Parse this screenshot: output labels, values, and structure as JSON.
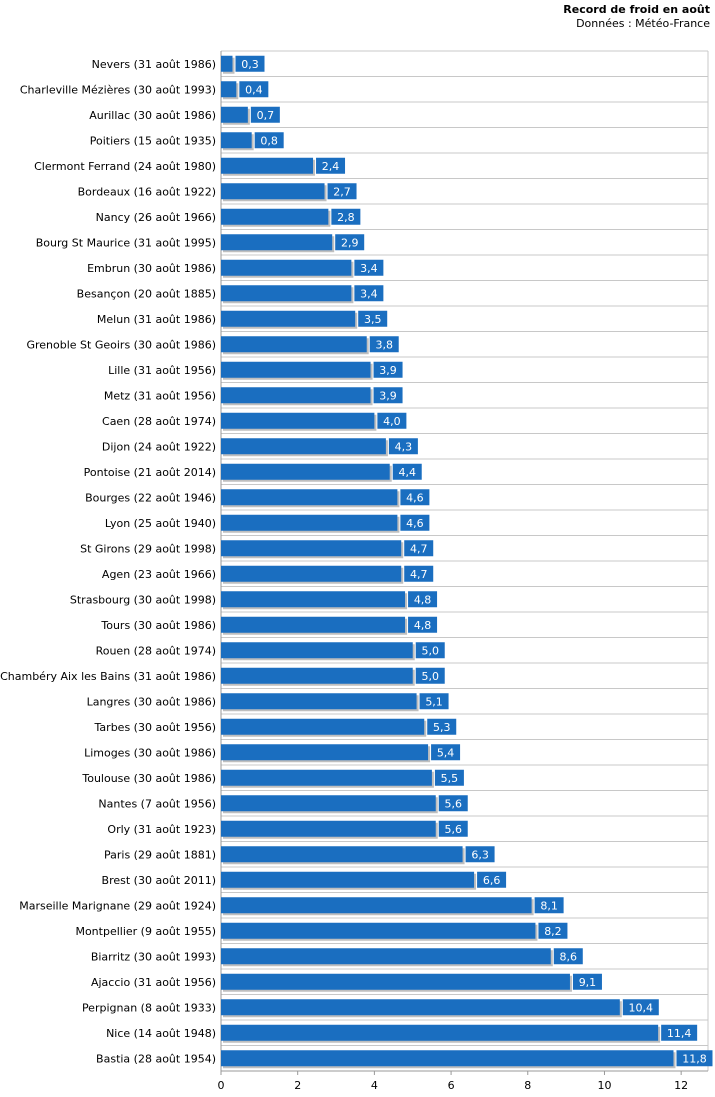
{
  "chart_data": {
    "type": "bar",
    "orientation": "horizontal",
    "title": "Record de froid en août",
    "subtitle": "Données : Météo-France",
    "xlim": [
      0,
      12.7
    ],
    "xticks": [
      0,
      2,
      4,
      6,
      8,
      10,
      12
    ],
    "bar_color": "#1a6ec0",
    "categories": [
      "Nevers (31 août 1986)",
      "Charleville Mézières (30 août 1993)",
      "Aurillac (30 août 1986)",
      "Poitiers (15 août 1935)",
      "Clermont Ferrand (24 août 1980)",
      "Bordeaux (16 août 1922)",
      "Nancy (26 août 1966)",
      "Bourg St Maurice (31 août 1995)",
      "Embrun (30 août 1986)",
      "Besançon (20 août 1885)",
      "Melun (31 août 1986)",
      "Grenoble St Geoirs (30 août 1986)",
      "Lille (31 août 1956)",
      "Metz (31 août 1956)",
      "Caen (28 août 1974)",
      "Dijon (24 août 1922)",
      "Pontoise (21 août 2014)",
      "Bourges (22 août 1946)",
      "Lyon (25 août 1940)",
      "St Girons (29 août 1998)",
      "Agen (23 août 1966)",
      "Strasbourg (30 août 1998)",
      "Tours (30 août 1986)",
      "Rouen (28 août 1974)",
      "Chambéry Aix les Bains (31 août 1986)",
      "Langres (30 août 1986)",
      "Tarbes (30 août 1956)",
      "Limoges (30 août 1986)",
      "Toulouse (30 août 1986)",
      "Nantes (7 août 1956)",
      "Orly (31 août 1923)",
      "Paris (29 août 1881)",
      "Brest (30 août 2011)",
      "Marseille Marignane (29 août 1924)",
      "Montpellier (9 août 1955)",
      "Biarritz (30 août 1993)",
      "Ajaccio (31 août 1956)",
      "Perpignan (8 août 1933)",
      "Nice (14 août 1948)",
      "Bastia (28 août 1954)"
    ],
    "values": [
      0.3,
      0.4,
      0.7,
      0.8,
      2.4,
      2.7,
      2.8,
      2.9,
      3.4,
      3.4,
      3.5,
      3.8,
      3.9,
      3.9,
      4.0,
      4.3,
      4.4,
      4.6,
      4.6,
      4.7,
      4.7,
      4.8,
      4.8,
      5.0,
      5.0,
      5.1,
      5.3,
      5.4,
      5.5,
      5.6,
      5.6,
      6.3,
      6.6,
      8.1,
      8.2,
      8.6,
      9.1,
      10.4,
      11.4,
      11.8
    ],
    "value_labels": [
      "0,3",
      "0,4",
      "0,7",
      "0,8",
      "2,4",
      "2,7",
      "2,8",
      "2,9",
      "3,4",
      "3,4",
      "3,5",
      "3,8",
      "3,9",
      "3,9",
      "4,0",
      "4,3",
      "4,4",
      "4,6",
      "4,6",
      "4,7",
      "4,7",
      "4,8",
      "4,8",
      "5,0",
      "5,0",
      "5,1",
      "5,3",
      "5,4",
      "5,5",
      "5,6",
      "5,6",
      "6,3",
      "6,6",
      "8,1",
      "8,2",
      "8,6",
      "9,1",
      "10,4",
      "11,4",
      "11,8"
    ],
    "grid": true
  }
}
